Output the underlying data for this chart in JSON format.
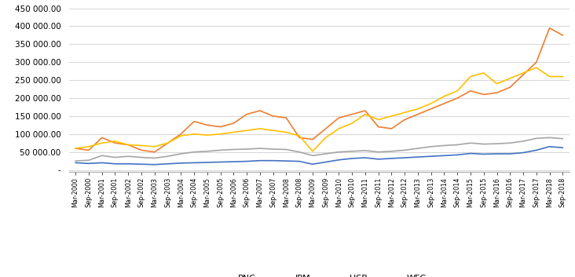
{
  "title": "",
  "ylabel": "",
  "xlabel": "",
  "ylim": [
    -5000,
    450000
  ],
  "yticks": [
    0,
    50000,
    100000,
    150000,
    200000,
    250000,
    300000,
    350000,
    400000,
    450000
  ],
  "colors": {
    "PNC": "#4472C4",
    "JPM": "#ED7D31",
    "USB": "#A5A5A5",
    "WFC": "#FFC000"
  },
  "line_width": 1.2,
  "background_color": "#FFFFFF",
  "grid_color": "#D9D9D9",
  "dates": [
    "Mar-2000",
    "Sep-2000",
    "Mar-2001",
    "Sep-2001",
    "Mar-2002",
    "Sep-2002",
    "Mar-2003",
    "Sep-2003",
    "Mar-2004",
    "Sep-2004",
    "Mar-2005",
    "Sep-2005",
    "Mar-2006",
    "Sep-2006",
    "Mar-2007",
    "Sep-2007",
    "Mar-2008",
    "Sep-2008",
    "Mar-2009",
    "Sep-2009",
    "Mar-2010",
    "Sep-2010",
    "Mar-2011",
    "Sep-2011",
    "Mar-2012",
    "Sep-2012",
    "Mar-2013",
    "Sep-2013",
    "Mar-2014",
    "Sep-2014",
    "Mar-2015",
    "Sep-2015",
    "Mar-2016",
    "Sep-2016",
    "Mar-2017",
    "Sep-2017",
    "Mar-2018",
    "Sep-2018"
  ],
  "PNC": [
    20000,
    18000,
    20000,
    17000,
    17000,
    16000,
    15000,
    17000,
    19000,
    20000,
    21000,
    22000,
    23000,
    24000,
    26000,
    26000,
    25000,
    24000,
    16000,
    22000,
    28000,
    32000,
    34000,
    30000,
    32000,
    34000,
    36000,
    38000,
    40000,
    42000,
    46000,
    44000,
    45000,
    45000,
    48000,
    55000,
    65000,
    62000
  ],
  "JPM": [
    60000,
    55000,
    90000,
    75000,
    70000,
    55000,
    50000,
    75000,
    100000,
    135000,
    125000,
    120000,
    130000,
    155000,
    165000,
    150000,
    145000,
    90000,
    85000,
    115000,
    145000,
    155000,
    165000,
    120000,
    115000,
    140000,
    155000,
    170000,
    185000,
    200000,
    220000,
    210000,
    215000,
    230000,
    265000,
    300000,
    395000,
    375000
  ],
  "USB": [
    25000,
    27000,
    40000,
    35000,
    38000,
    35000,
    33000,
    38000,
    45000,
    50000,
    52000,
    55000,
    57000,
    58000,
    60000,
    58000,
    57000,
    50000,
    40000,
    45000,
    50000,
    52000,
    54000,
    50000,
    52000,
    55000,
    60000,
    65000,
    68000,
    70000,
    75000,
    72000,
    73000,
    75000,
    80000,
    88000,
    90000,
    87000
  ],
  "WFC": [
    60000,
    65000,
    75000,
    80000,
    70000,
    68000,
    65000,
    75000,
    95000,
    100000,
    97000,
    100000,
    105000,
    110000,
    115000,
    110000,
    105000,
    95000,
    52000,
    90000,
    115000,
    130000,
    155000,
    140000,
    150000,
    160000,
    170000,
    185000,
    205000,
    220000,
    260000,
    270000,
    240000,
    255000,
    270000,
    285000,
    260000,
    260000
  ]
}
